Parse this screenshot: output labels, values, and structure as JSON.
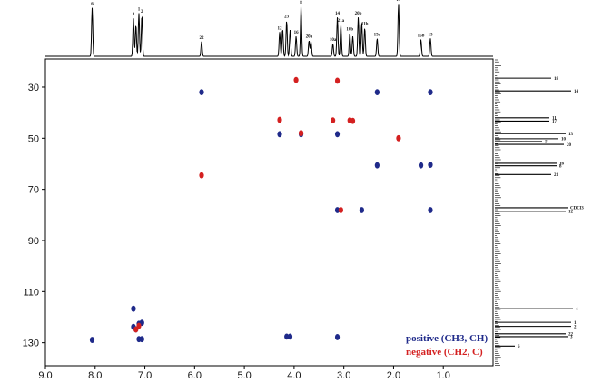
{
  "chart_data": {
    "type": "scatter",
    "title": "",
    "xlabel": "",
    "ylabel": "",
    "x_axis": {
      "reversed": true,
      "xlim": [
        0.0,
        9.0
      ],
      "ticks": [
        "9.0",
        "8.0",
        "7.0",
        "6.0",
        "5.0",
        "4.0",
        "3.0",
        "2.0",
        "1.0"
      ]
    },
    "y_axis": {
      "reversed": true,
      "ylim": [
        19,
        139
      ],
      "ticks": [
        "30",
        "50",
        "70",
        "90",
        "110",
        "130"
      ]
    },
    "legend": [
      {
        "label": "positive (CH3, CH)",
        "color": "#1f2a8a"
      },
      {
        "label": "negative (CH2, C)",
        "color": "#d42020"
      }
    ],
    "legend_placement": "bottom-right",
    "colors": {
      "positive": "#1f2a8a",
      "negative": "#d42020",
      "axis": "#000000"
    },
    "proton_peaks": [
      {
        "ppm": 8.06,
        "h": 0.92,
        "label": "6"
      },
      {
        "ppm": 7.23,
        "h": 0.72,
        "label": "3"
      },
      {
        "ppm": 7.18,
        "h": 0.6,
        "label": ""
      },
      {
        "ppm": 7.12,
        "h": 0.82,
        "label": "1"
      },
      {
        "ppm": 7.06,
        "h": 0.78,
        "label": "2"
      },
      {
        "ppm": 5.86,
        "h": 0.28,
        "label": "22"
      },
      {
        "ppm": 4.29,
        "h": 0.46,
        "label": "12"
      },
      {
        "ppm": 4.23,
        "h": 0.52,
        "label": ""
      },
      {
        "ppm": 4.15,
        "h": 0.68,
        "label": "23"
      },
      {
        "ppm": 4.08,
        "h": 0.5,
        "label": ""
      },
      {
        "ppm": 3.96,
        "h": 0.38,
        "label": "16"
      },
      {
        "ppm": 3.86,
        "h": 0.95,
        "label": "8"
      },
      {
        "ppm": 3.7,
        "h": 0.3,
        "label": "20a"
      },
      {
        "ppm": 3.66,
        "h": 0.28,
        "label": ""
      },
      {
        "ppm": 3.22,
        "h": 0.24,
        "label": "10a"
      },
      {
        "ppm": 3.13,
        "h": 0.74,
        "label": "14"
      },
      {
        "ppm": 3.06,
        "h": 0.6,
        "label": "21a"
      },
      {
        "ppm": 2.88,
        "h": 0.44,
        "label": "10b"
      },
      {
        "ppm": 2.82,
        "h": 0.38,
        "label": ""
      },
      {
        "ppm": 2.71,
        "h": 0.74,
        "label": "20b"
      },
      {
        "ppm": 2.64,
        "h": 0.64,
        "label": ""
      },
      {
        "ppm": 2.58,
        "h": 0.54,
        "label": "11b"
      },
      {
        "ppm": 2.33,
        "h": 0.34,
        "label": "15a"
      },
      {
        "ppm": 1.9,
        "h": 1.0,
        "label": "17"
      },
      {
        "ppm": 1.45,
        "h": 0.32,
        "label": "15b"
      },
      {
        "ppm": 1.26,
        "h": 0.34,
        "label": "13"
      }
    ],
    "carbon_peaks": [
      {
        "ppm": 26.5,
        "label": "18"
      },
      {
        "ppm": 31.5,
        "label": "14"
      },
      {
        "ppm": 42.0,
        "label": "11"
      },
      {
        "ppm": 43.3,
        "label": "17"
      },
      {
        "ppm": 48.2,
        "label": "13"
      },
      {
        "ppm": 50.2,
        "label": "10"
      },
      {
        "ppm": 51.3,
        "label": "7"
      },
      {
        "ppm": 52.4,
        "label": "20"
      },
      {
        "ppm": 59.8,
        "label": "16"
      },
      {
        "ppm": 60.8,
        "label": "8"
      },
      {
        "ppm": 64.2,
        "label": "21"
      },
      {
        "ppm": 77.2,
        "label": "CDCl3"
      },
      {
        "ppm": 78.6,
        "label": "12"
      },
      {
        "ppm": 116.7,
        "label": "4"
      },
      {
        "ppm": 122.0,
        "label": "1"
      },
      {
        "ppm": 123.6,
        "label": "2"
      },
      {
        "ppm": 126.5,
        "label": "22"
      },
      {
        "ppm": 127.6,
        "label": "3"
      },
      {
        "ppm": 131.3,
        "label": "6"
      }
    ],
    "positive_cross_peaks": [
      {
        "x": 8.06,
        "y": 128.9
      },
      {
        "x": 7.23,
        "y": 116.7
      },
      {
        "x": 7.23,
        "y": 123.8
      },
      {
        "x": 7.12,
        "y": 122.6
      },
      {
        "x": 7.06,
        "y": 122.2
      },
      {
        "x": 7.12,
        "y": 128.6
      },
      {
        "x": 7.06,
        "y": 128.6
      },
      {
        "x": 7.18,
        "y": 124.8
      },
      {
        "x": 5.86,
        "y": 32.0
      },
      {
        "x": 4.29,
        "y": 48.4
      },
      {
        "x": 4.15,
        "y": 127.6
      },
      {
        "x": 4.08,
        "y": 127.6
      },
      {
        "x": 3.86,
        "y": 48.4
      },
      {
        "x": 3.13,
        "y": 48.4
      },
      {
        "x": 3.13,
        "y": 78.1
      },
      {
        "x": 3.13,
        "y": 127.8
      },
      {
        "x": 2.64,
        "y": 78.1
      },
      {
        "x": 2.33,
        "y": 32.0
      },
      {
        "x": 2.33,
        "y": 60.6
      },
      {
        "x": 1.45,
        "y": 60.6
      },
      {
        "x": 1.26,
        "y": 32.0
      },
      {
        "x": 1.26,
        "y": 60.4
      },
      {
        "x": 1.26,
        "y": 78.1
      }
    ],
    "negative_cross_peaks": [
      {
        "x": 7.12,
        "y": 123.4
      },
      {
        "x": 7.18,
        "y": 124.8
      },
      {
        "x": 5.86,
        "y": 64.5
      },
      {
        "x": 4.29,
        "y": 42.8
      },
      {
        "x": 3.96,
        "y": 27.2
      },
      {
        "x": 3.86,
        "y": 48.0
      },
      {
        "x": 3.22,
        "y": 43.0
      },
      {
        "x": 3.13,
        "y": 27.5
      },
      {
        "x": 3.06,
        "y": 78.1
      },
      {
        "x": 2.88,
        "y": 43.0
      },
      {
        "x": 2.82,
        "y": 43.2
      },
      {
        "x": 1.9,
        "y": 50.0
      }
    ]
  }
}
